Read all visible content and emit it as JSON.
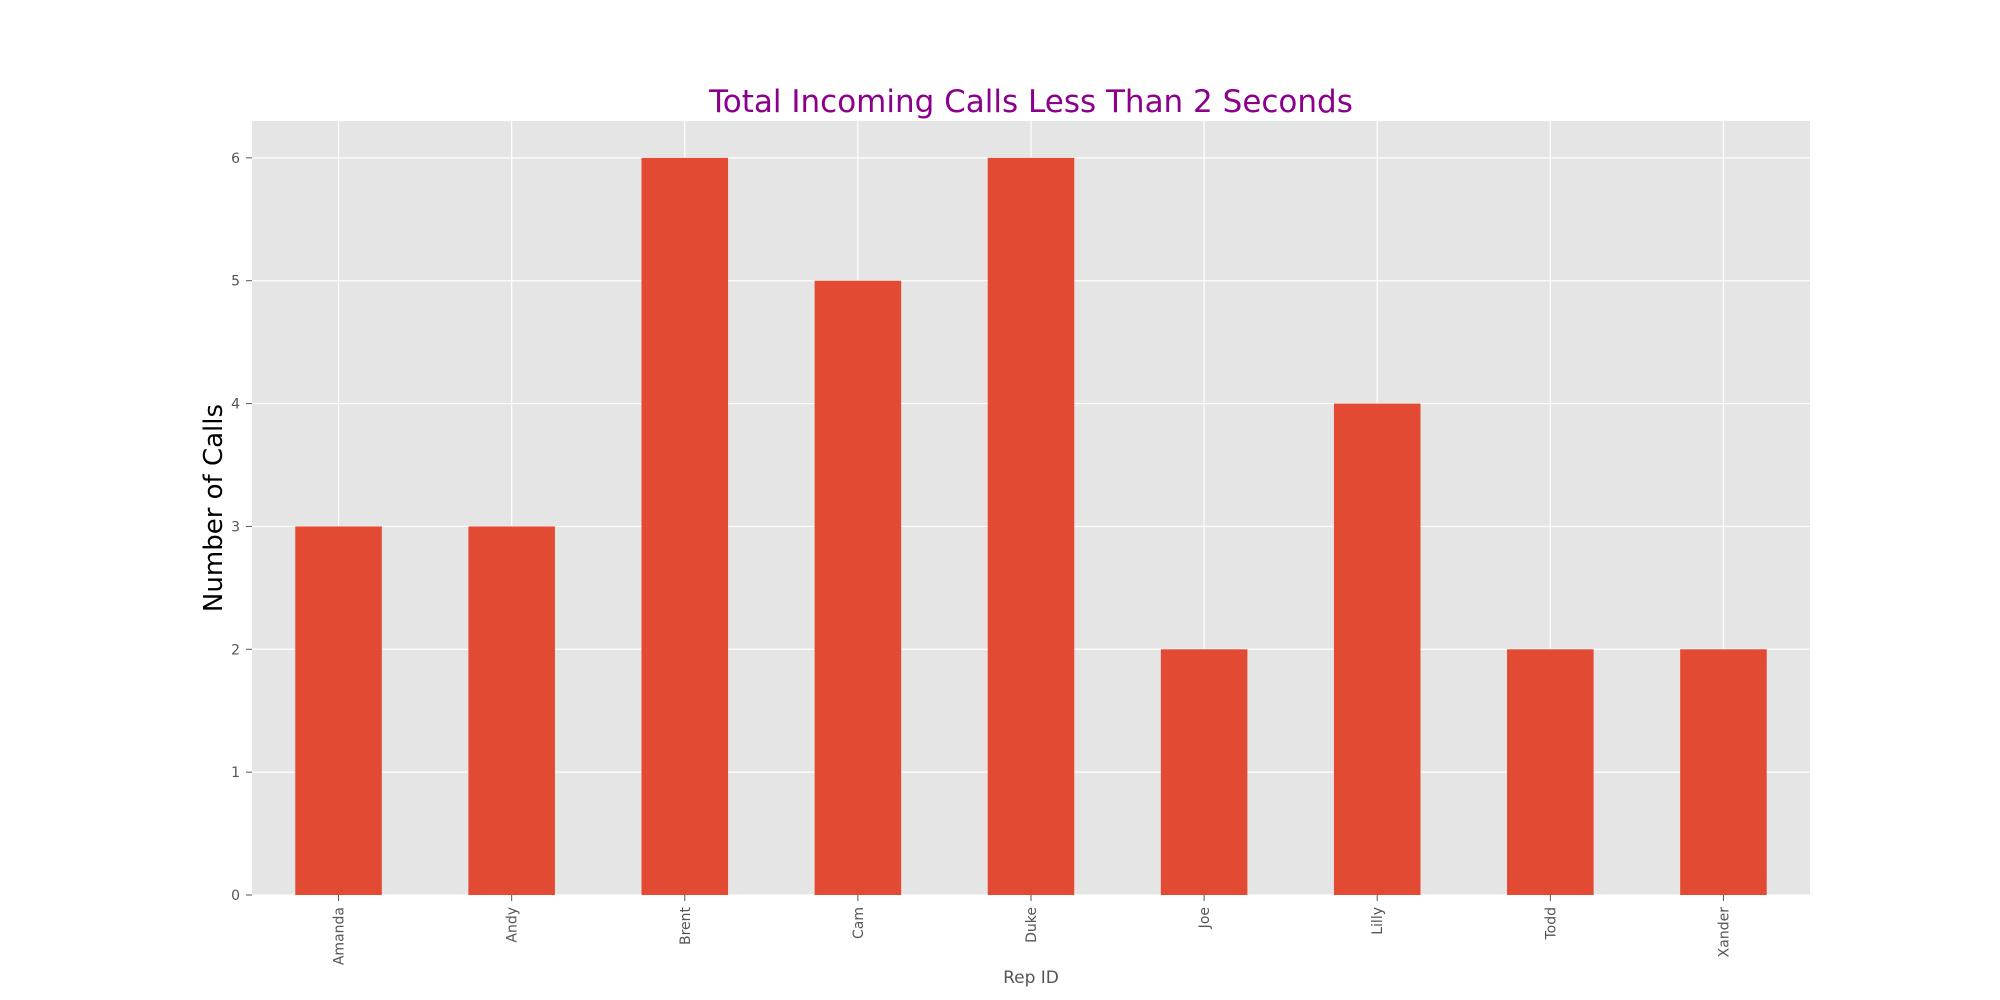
{
  "chart_data": {
    "type": "bar",
    "title": "Total Incoming Calls Less Than 2 Seconds",
    "xlabel": "Rep ID",
    "ylabel": "Number of Calls",
    "categories": [
      "Amanda",
      "Andy",
      "Brent",
      "Cam",
      "Duke",
      "Joe",
      "Lilly",
      "Todd",
      "Xander"
    ],
    "values": [
      3,
      3,
      6,
      5,
      6,
      2,
      4,
      2,
      2
    ],
    "ylim": [
      0,
      6.3
    ],
    "yticks": [
      0,
      1,
      2,
      3,
      4,
      5,
      6
    ],
    "grid": true,
    "legend": "none",
    "colors": {
      "bar": "#E24A33",
      "plot_background": "#E5E5E5",
      "grid": "#FFFFFF",
      "title": "#8B008B",
      "tick_text": "#555555",
      "ylabel": "#000000",
      "xlabel": "#555555"
    }
  }
}
